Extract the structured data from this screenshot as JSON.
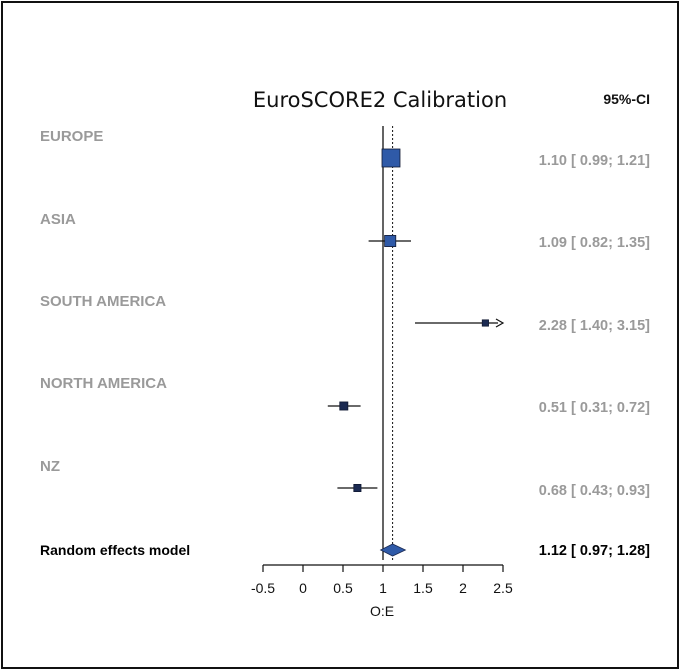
{
  "chart_data": {
    "type": "forest",
    "title": "EuroSCORE2 Calibration",
    "ci_header": "95%-CI",
    "xlabel": "O:E",
    "xlim": [
      -0.5,
      2.5
    ],
    "ticks": [
      "-0.5",
      "0",
      "0.5",
      "1",
      "1.5",
      "2",
      "2.5"
    ],
    "reference_line": 1,
    "pooled_reference_line": 1.12,
    "studies": [
      {
        "name": "EUROPE",
        "est": 1.1,
        "lower": 0.99,
        "upper": 1.21,
        "ci_text": "1.10  [ 0.99; 1.21]",
        "weight": 1.0
      },
      {
        "name": "ASIA",
        "est": 1.09,
        "lower": 0.82,
        "upper": 1.35,
        "ci_text": "1.09  [ 0.82; 1.35]",
        "weight": 0.62
      },
      {
        "name": "SOUTH AMERICA",
        "est": 2.28,
        "lower": 1.4,
        "upper": 3.15,
        "ci_text": "2.28  [ 1.40; 3.15]",
        "weight": 0.35
      },
      {
        "name": "NORTH AMERICA",
        "est": 0.51,
        "lower": 0.31,
        "upper": 0.72,
        "ci_text": "0.51  [ 0.31; 0.72]",
        "weight": 0.45
      },
      {
        "name": "NZ",
        "est": 0.68,
        "lower": 0.43,
        "upper": 0.93,
        "ci_text": "0.68  [ 0.43; 0.93]",
        "weight": 0.4
      }
    ],
    "pooled": {
      "name": "Random effects model",
      "est": 1.12,
      "lower": 0.97,
      "upper": 1.28,
      "ci_text": "1.12  [ 0.97; 1.28]"
    },
    "colors": {
      "box": "#2f5aa8",
      "box_small": "#1b2a52",
      "diamond": "#2f5aa8",
      "line": "#111111",
      "label_gray": "#9a9a9a"
    }
  }
}
